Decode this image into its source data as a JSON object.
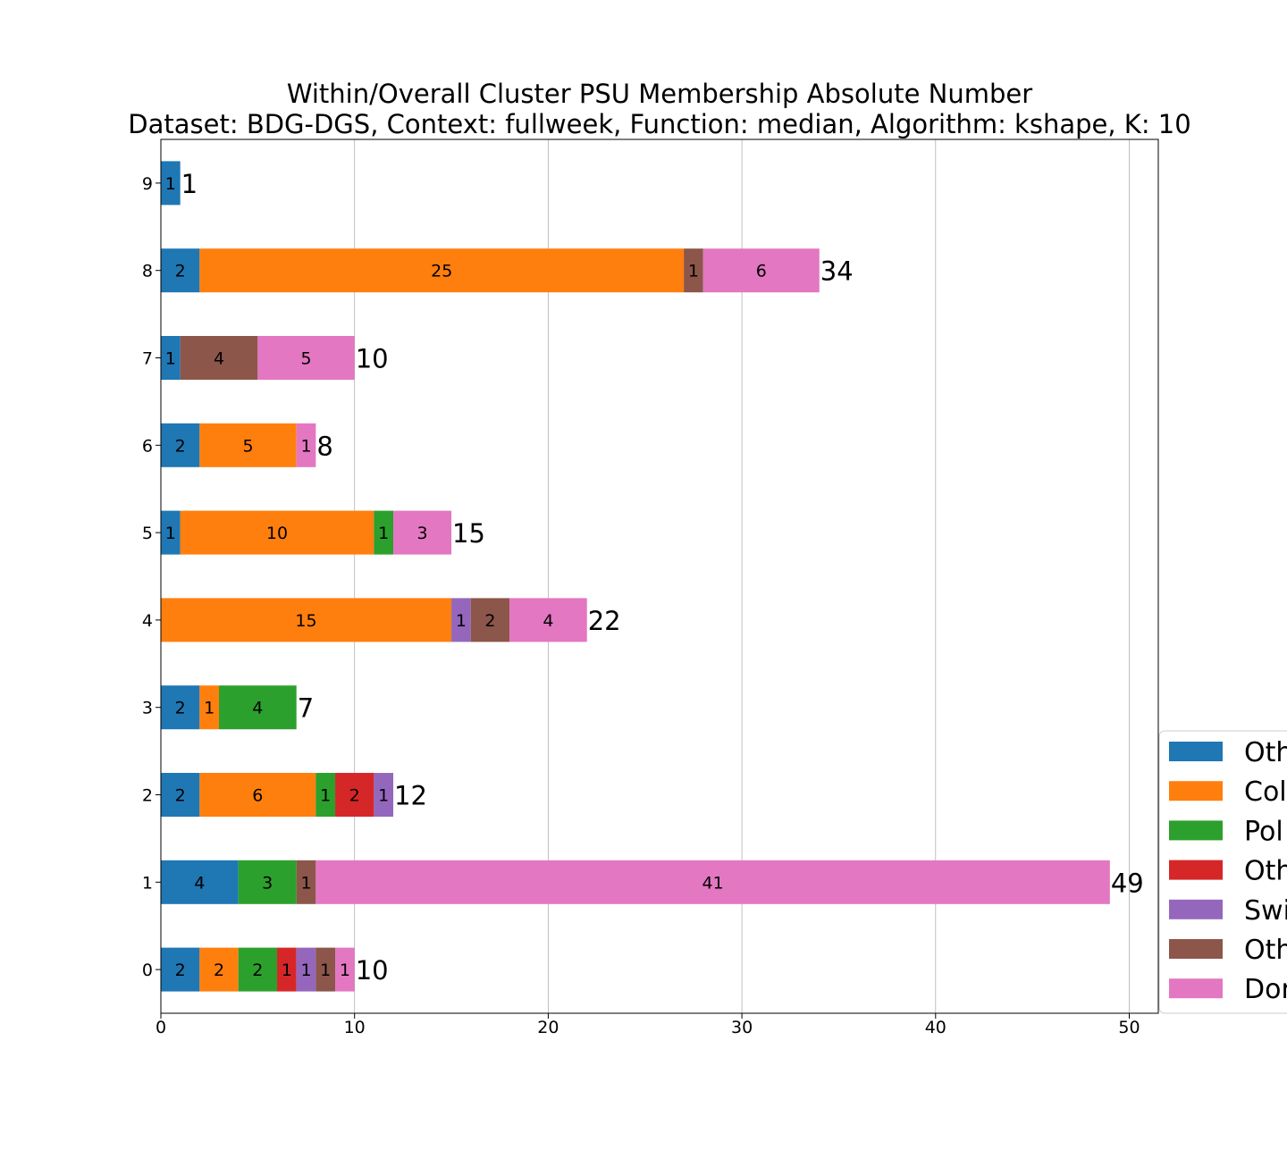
{
  "chart_data": {
    "type": "bar",
    "orientation": "horizontal",
    "stacked": true,
    "title": "Within/Overall Cluster PSU Membership Absolute Number",
    "subtitle": "Dataset: BDG-DGS, Context: fullweek, Function: median, Algorithm: kshape, K: 10",
    "xlabel": "",
    "ylabel": "",
    "xlim": [
      0,
      51.5
    ],
    "x_ticks": [
      "0",
      "10",
      "20",
      "30",
      "40",
      "50"
    ],
    "grid": "vertical",
    "legend_position": "right-bottom",
    "categories": [
      "0",
      "1",
      "2",
      "3",
      "4",
      "5",
      "6",
      "7",
      "8",
      "9"
    ],
    "series": [
      {
        "name": "Oth",
        "color": "#1f77b4",
        "values": [
          2,
          4,
          2,
          2,
          0,
          1,
          2,
          1,
          2,
          1
        ]
      },
      {
        "name": "Col",
        "color": "#ff7f0e",
        "values": [
          2,
          0,
          6,
          1,
          15,
          10,
          5,
          0,
          25,
          0
        ]
      },
      {
        "name": "Pol",
        "color": "#2ca02c",
        "values": [
          2,
          3,
          1,
          4,
          0,
          1,
          0,
          0,
          0,
          0
        ]
      },
      {
        "name": "Oth",
        "color": "#d62728",
        "values": [
          1,
          0,
          2,
          0,
          0,
          0,
          0,
          0,
          0,
          0
        ]
      },
      {
        "name": "Swi",
        "color": "#9467bd",
        "values": [
          1,
          0,
          1,
          0,
          1,
          0,
          0,
          0,
          0,
          0
        ]
      },
      {
        "name": "Oth",
        "color": "#8c564b",
        "values": [
          1,
          1,
          0,
          0,
          2,
          0,
          0,
          4,
          1,
          0
        ]
      },
      {
        "name": "Dor",
        "color": "#e377c2",
        "values": [
          1,
          41,
          0,
          0,
          4,
          3,
          1,
          5,
          6,
          0
        ]
      }
    ],
    "totals": [
      10,
      49,
      12,
      7,
      22,
      15,
      8,
      10,
      34,
      1
    ]
  }
}
